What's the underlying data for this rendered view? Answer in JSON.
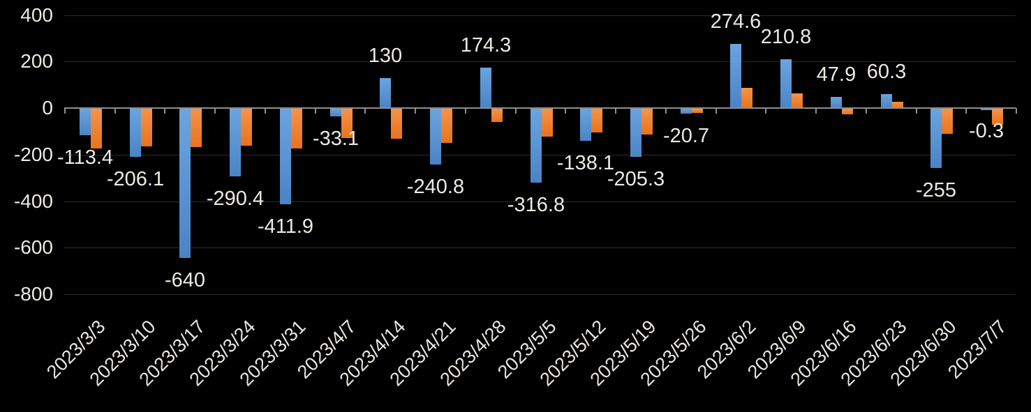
{
  "chart_data": {
    "type": "bar",
    "title": "",
    "categories": [
      "2023/3/3",
      "2023/3/10",
      "2023/3/17",
      "2023/3/24",
      "2023/3/31",
      "2023/4/7",
      "2023/4/14",
      "2023/4/21",
      "2023/4/28",
      "2023/5/5",
      "2023/5/12",
      "2023/5/19",
      "2023/5/26",
      "2023/6/2",
      "2023/6/9",
      "2023/6/16",
      "2023/6/23",
      "2023/6/30",
      "2023/7/7"
    ],
    "series": [
      {
        "name": "blue",
        "color_top": "#6ba4df",
        "color_bottom": "#4a84c4",
        "values": [
          -113.4,
          -206.1,
          -640,
          -290.4,
          -411.9,
          -33.1,
          130,
          -240.8,
          174.3,
          -316.8,
          -138.1,
          -205.3,
          -20.7,
          274.6,
          210.8,
          47.9,
          60.3,
          -255,
          -0.3
        ],
        "data_labels": [
          "-113.4",
          "-206.1",
          "-640",
          "-290.4",
          "-411.9",
          "-33.1",
          "130",
          "-240.8",
          "174.3",
          "-316.8",
          "-138.1",
          "-205.3",
          "-20.7",
          "274.6",
          "210.8",
          "47.9",
          "60.3",
          "-255",
          "-0.3"
        ]
      },
      {
        "name": "orange",
        "color_top": "#f5934a",
        "color_bottom": "#e8731e",
        "values": [
          -170,
          -163,
          -164,
          -158,
          -170,
          -125,
          -128,
          -147,
          -57,
          -120,
          -103,
          -110,
          -17,
          87,
          62,
          -25,
          27,
          -107,
          -70
        ],
        "data_labels": []
      }
    ],
    "y_axis": {
      "tick_labels": [
        "400",
        "200",
        "0",
        "-200",
        "-400",
        "-600",
        "-800"
      ],
      "tick_values": [
        400,
        200,
        0,
        -200,
        -400,
        -600,
        -800
      ],
      "min": -800,
      "max": 400
    },
    "x_axis": {
      "label_rotation_deg": -45
    },
    "grid": true,
    "legend": false,
    "colors": {
      "background": "#000000",
      "gridline": "#2b2b2b",
      "axis": "#8f8f8f",
      "text": "#eceae2"
    }
  }
}
